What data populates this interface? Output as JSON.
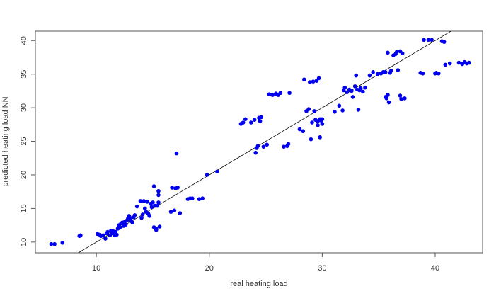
{
  "chart_data": {
    "type": "scatter",
    "title": "",
    "xlabel": "real heating load",
    "ylabel": "predicted heating load NN",
    "xlim": [
      4.6,
      44.2
    ],
    "ylim": [
      8.4,
      41.4
    ],
    "x_ticks": [
      10,
      20,
      30,
      40
    ],
    "x_tick_labels": [
      "10",
      "20",
      "30",
      "40"
    ],
    "y_ticks": [
      10,
      15,
      20,
      25,
      30,
      35,
      40
    ],
    "y_tick_labels": [
      "10",
      "15",
      "20",
      "25",
      "30",
      "35",
      "40"
    ],
    "grid": false,
    "point_color": "#0000ee",
    "line_color": "#000000",
    "reference_line": {
      "intercept": 0.0,
      "slope": 1.0
    },
    "points": [
      [
        6.0,
        9.7
      ],
      [
        6.3,
        9.7
      ],
      [
        7.0,
        9.9
      ],
      [
        8.5,
        10.9
      ],
      [
        8.6,
        11.0
      ],
      [
        10.1,
        11.2
      ],
      [
        10.3,
        11.1
      ],
      [
        10.4,
        10.9
      ],
      [
        10.6,
        11.0
      ],
      [
        10.8,
        10.5
      ],
      [
        10.9,
        11.3
      ],
      [
        11.0,
        11.5
      ],
      [
        11.2,
        11.0
      ],
      [
        11.3,
        11.7
      ],
      [
        11.4,
        11.3
      ],
      [
        11.5,
        11.6
      ],
      [
        11.6,
        11.0
      ],
      [
        11.7,
        11.5
      ],
      [
        11.8,
        11.1
      ],
      [
        11.9,
        12.0
      ],
      [
        12.0,
        12.5
      ],
      [
        12.1,
        12.2
      ],
      [
        12.2,
        12.8
      ],
      [
        12.3,
        12.9
      ],
      [
        12.4,
        12.4
      ],
      [
        12.5,
        13.0
      ],
      [
        12.6,
        12.6
      ],
      [
        12.7,
        13.2
      ],
      [
        12.8,
        13.5
      ],
      [
        12.9,
        13.9
      ],
      [
        13.0,
        13.6
      ],
      [
        13.1,
        13.1
      ],
      [
        13.2,
        12.9
      ],
      [
        13.3,
        13.7
      ],
      [
        13.4,
        14.0
      ],
      [
        13.6,
        15.3
      ],
      [
        13.9,
        16.1
      ],
      [
        14.0,
        13.6
      ],
      [
        14.1,
        14.1
      ],
      [
        14.2,
        16.1
      ],
      [
        14.3,
        15.0
      ],
      [
        14.4,
        14.5
      ],
      [
        14.5,
        16.0
      ],
      [
        14.6,
        14.2
      ],
      [
        14.7,
        13.9
      ],
      [
        14.8,
        15.7
      ],
      [
        14.9,
        15.2
      ],
      [
        15.0,
        15.9
      ],
      [
        15.1,
        18.3
      ],
      [
        15.1,
        12.2
      ],
      [
        15.2,
        15.4
      ],
      [
        15.3,
        12.0
      ],
      [
        15.3,
        11.8
      ],
      [
        15.4,
        15.4
      ],
      [
        15.5,
        17.6
      ],
      [
        15.5,
        17.0
      ],
      [
        15.5,
        15.9
      ],
      [
        15.6,
        12.3
      ],
      [
        16.6,
        14.5
      ],
      [
        16.7,
        18.1
      ],
      [
        16.9,
        14.7
      ],
      [
        17.0,
        18.0
      ],
      [
        17.1,
        23.2
      ],
      [
        17.2,
        18.1
      ],
      [
        17.4,
        14.3
      ],
      [
        18.1,
        16.4
      ],
      [
        18.3,
        16.5
      ],
      [
        18.5,
        16.5
      ],
      [
        19.1,
        16.4
      ],
      [
        19.4,
        16.5
      ],
      [
        19.8,
        20.0
      ],
      [
        20.7,
        20.5
      ],
      [
        22.8,
        27.6
      ],
      [
        23.0,
        27.8
      ],
      [
        23.2,
        28.3
      ],
      [
        23.7,
        27.8
      ],
      [
        24.0,
        28.2
      ],
      [
        24.1,
        23.3
      ],
      [
        24.2,
        24.0
      ],
      [
        24.3,
        24.3
      ],
      [
        24.4,
        28.5
      ],
      [
        24.5,
        28.0
      ],
      [
        24.6,
        28.6
      ],
      [
        24.8,
        24.2
      ],
      [
        25.1,
        24.5
      ],
      [
        25.3,
        32.0
      ],
      [
        25.6,
        31.9
      ],
      [
        25.9,
        32.1
      ],
      [
        26.1,
        31.9
      ],
      [
        26.3,
        32.2
      ],
      [
        26.6,
        24.2
      ],
      [
        26.9,
        24.3
      ],
      [
        27.0,
        24.6
      ],
      [
        27.1,
        32.2
      ],
      [
        28.0,
        26.8
      ],
      [
        28.3,
        26.5
      ],
      [
        28.4,
        34.2
      ],
      [
        28.6,
        29.5
      ],
      [
        28.8,
        29.8
      ],
      [
        28.9,
        33.8
      ],
      [
        29.1,
        27.8
      ],
      [
        29.2,
        33.9
      ],
      [
        29.3,
        29.5
      ],
      [
        29.4,
        28.2
      ],
      [
        29.5,
        34.0
      ],
      [
        29.6,
        28.0
      ],
      [
        29.7,
        34.4
      ],
      [
        29.8,
        28.3
      ],
      [
        29.9,
        28.1
      ],
      [
        30.0,
        27.6
      ],
      [
        29.8,
        25.6
      ],
      [
        29.0,
        25.3
      ],
      [
        29.6,
        27.4
      ],
      [
        30.0,
        28.3
      ],
      [
        31.1,
        29.4
      ],
      [
        31.5,
        30.3
      ],
      [
        31.8,
        29.6
      ],
      [
        31.9,
        32.6
      ],
      [
        32.0,
        33.0
      ],
      [
        32.2,
        32.3
      ],
      [
        32.4,
        32.7
      ],
      [
        32.6,
        32.5
      ],
      [
        32.7,
        31.6
      ],
      [
        32.9,
        33.2
      ],
      [
        33.0,
        34.8
      ],
      [
        33.1,
        32.7
      ],
      [
        33.2,
        29.7
      ],
      [
        33.3,
        32.6
      ],
      [
        33.4,
        32.9
      ],
      [
        33.6,
        32.4
      ],
      [
        33.8,
        33.0
      ],
      [
        34.2,
        34.8
      ],
      [
        34.5,
        35.3
      ],
      [
        34.9,
        35.0
      ],
      [
        35.2,
        35.1
      ],
      [
        35.4,
        35.3
      ],
      [
        35.6,
        35.3
      ],
      [
        35.6,
        31.6
      ],
      [
        35.7,
        31.4
      ],
      [
        35.8,
        31.9
      ],
      [
        35.9,
        30.8
      ],
      [
        36.0,
        35.2
      ],
      [
        36.1,
        35.5
      ],
      [
        36.3,
        37.8
      ],
      [
        36.5,
        38.0
      ],
      [
        36.6,
        38.3
      ],
      [
        36.7,
        35.6
      ],
      [
        36.9,
        31.8
      ],
      [
        36.9,
        38.4
      ],
      [
        37.0,
        31.3
      ],
      [
        37.1,
        38.1
      ],
      [
        37.3,
        31.4
      ],
      [
        35.8,
        38.2
      ],
      [
        38.7,
        35.2
      ],
      [
        38.9,
        35.1
      ],
      [
        39.0,
        40.1
      ],
      [
        39.4,
        40.1
      ],
      [
        39.7,
        40.1
      ],
      [
        40.0,
        35.1
      ],
      [
        40.1,
        35.2
      ],
      [
        40.3,
        35.1
      ],
      [
        40.6,
        39.9
      ],
      [
        40.8,
        39.8
      ],
      [
        40.9,
        36.4
      ],
      [
        41.3,
        36.6
      ],
      [
        42.1,
        36.7
      ],
      [
        42.4,
        36.5
      ],
      [
        42.6,
        36.8
      ],
      [
        42.8,
        36.6
      ],
      [
        43.0,
        36.7
      ]
    ]
  }
}
